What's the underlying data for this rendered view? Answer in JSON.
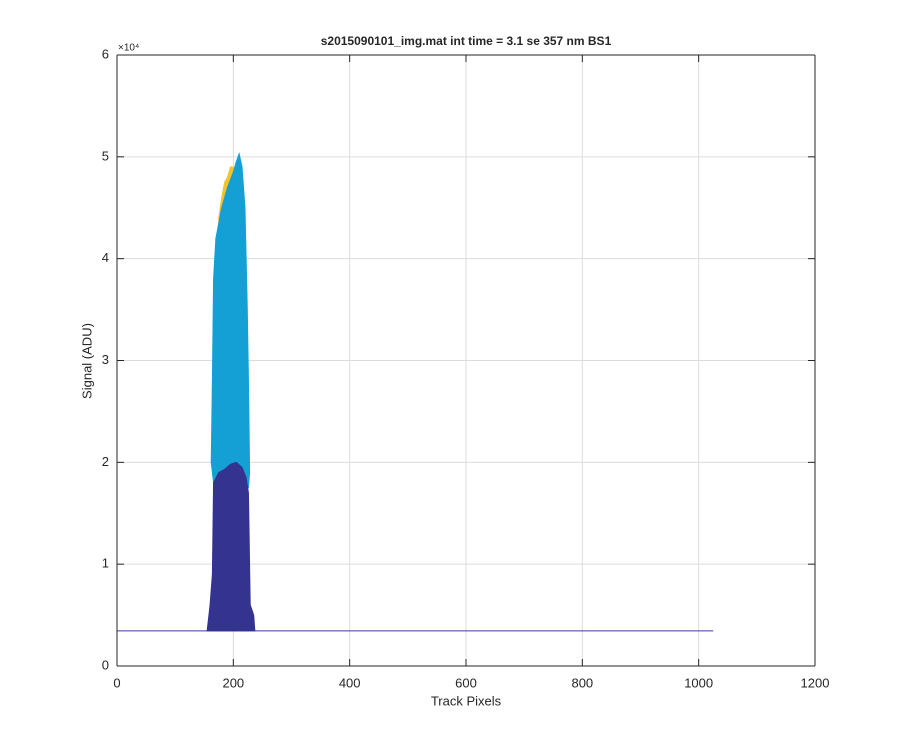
{
  "chart_data": {
    "type": "area",
    "title": "s2015090101_img.mat int time = 3.1 se  357 nm BS1",
    "x_label": "Track Pixels",
    "y_label": "Signal (ADU)",
    "y_exponent_label": "×10⁴",
    "xlim": [
      0,
      1200
    ],
    "xticks": [
      0,
      200,
      400,
      600,
      800,
      1000,
      1200
    ],
    "ylim": [
      0,
      60000
    ],
    "yticks": [
      {
        "value": 0,
        "label": "0"
      },
      {
        "value": 10000,
        "label": "1"
      },
      {
        "value": 20000,
        "label": "2"
      },
      {
        "value": 30000,
        "label": "3"
      },
      {
        "value": 40000,
        "label": "4"
      },
      {
        "value": 50000,
        "label": "5"
      },
      {
        "value": 60000,
        "label": "6"
      }
    ],
    "grid": true,
    "series": [
      {
        "style": "fill",
        "color": "#f2c42a",
        "x": [
          175,
          180,
          185,
          190,
          195,
          200,
          205,
          200,
          190,
          180,
          175
        ],
        "values": [
          44000,
          46000,
          47500,
          48000,
          49000,
          49000,
          48000,
          45000,
          44000,
          40000,
          38000
        ]
      },
      {
        "style": "fill",
        "color": "#14a0d4",
        "x": [
          162,
          164,
          166,
          170,
          180,
          190,
          200,
          205,
          210,
          215,
          220,
          224,
          226,
          228,
          226,
          166
        ],
        "values": [
          20000,
          28000,
          38000,
          42000,
          45000,
          47000,
          48500,
          49500,
          50300,
          49000,
          45000,
          35000,
          28000,
          19000,
          17500,
          18000
        ]
      },
      {
        "style": "line",
        "color": "#3e3c9c",
        "x": [
          0,
          1025
        ],
        "values": [
          3450,
          3450
        ]
      },
      {
        "style": "fill",
        "color": "#34338f",
        "x": [
          155,
          160,
          164,
          166,
          175,
          185,
          195,
          205,
          215,
          222,
          226,
          229,
          235,
          237,
          155
        ],
        "values": [
          3450,
          6000,
          9000,
          18000,
          19000,
          19300,
          19800,
          20000,
          19500,
          18500,
          17000,
          6000,
          5000,
          3450,
          3450
        ]
      }
    ]
  }
}
